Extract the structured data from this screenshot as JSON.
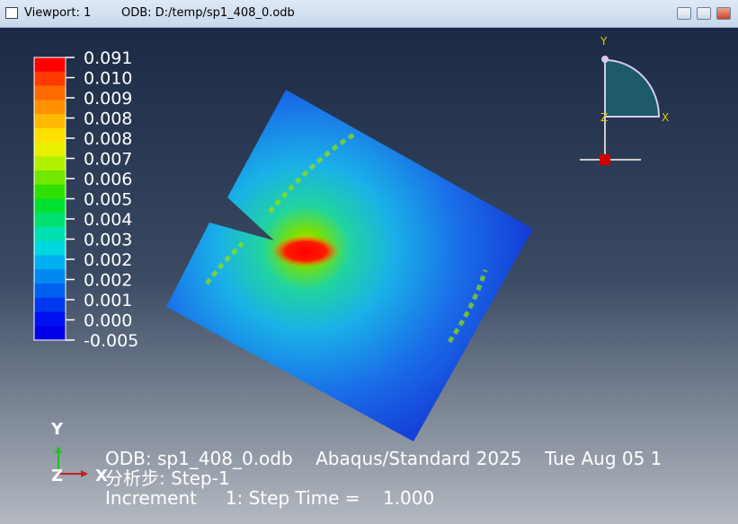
{
  "title_bar": {
    "viewport": "Viewport: 1",
    "odb_path": "ODB: D:/temp/sp1_408_0.odb"
  },
  "legend": {
    "labels": [
      "0.091",
      "0.010",
      "0.009",
      "0.008",
      "0.008",
      "0.007",
      "0.006",
      "0.005",
      "0.004",
      "0.003",
      "0.002",
      "0.002",
      "0.001",
      "0.000",
      "-0.005"
    ]
  },
  "triad_top": {
    "y": "Y",
    "x": "X",
    "z": "Z"
  },
  "triad_bottom": {
    "y": "Y",
    "z": "Z",
    "x": "X"
  },
  "info": {
    "odb": "ODB: sp1_408_0.odb    Abaqus/Standard 2025    Tue Aug 05 1",
    "step": "分析步: Step-1",
    "increment": "Increment     1: Step Time =    1.000"
  }
}
